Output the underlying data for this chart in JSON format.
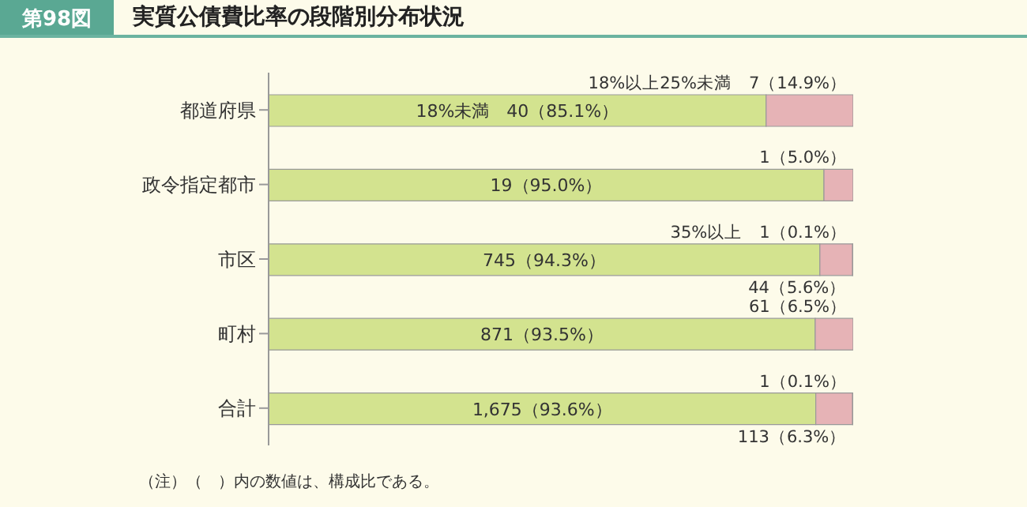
{
  "chart_data": {
    "type": "bar",
    "orientation": "horizontal",
    "stacked": true,
    "subtitle": "第98図",
    "title": "実質公債費比率の段階別分布状況",
    "categories": [
      "都道府県",
      "政令指定都市",
      "市区",
      "町村",
      "合計"
    ],
    "series": [
      {
        "name": "18%未満",
        "color": "#d3e38f",
        "values": [
          85.1,
          95.0,
          94.3,
          93.5,
          93.6
        ],
        "value_labels": [
          "40（85.1%）",
          "19（95.0%）",
          "745（94.3%）",
          "871（93.5%）",
          "1,675（93.6%）"
        ]
      },
      {
        "name": "18%以上25%未満",
        "color": "#e6b3b6",
        "values": [
          14.9,
          5.0,
          5.6,
          6.5,
          6.3
        ],
        "value_labels": [
          "7（14.9%）",
          "1（5.0%）",
          "44（5.6%）",
          "61（6.5%）",
          "113（6.3%）"
        ]
      },
      {
        "name": "35%以上",
        "color": "#e6b3b6",
        "values": [
          null,
          null,
          0.1,
          null,
          0.1
        ],
        "value_labels": [
          null,
          null,
          "1（0.1%）",
          null,
          "1（0.1%）"
        ]
      }
    ],
    "xlim": [
      0,
      100
    ],
    "tick_labels": "y",
    "legend": false,
    "grid": false,
    "annotations": [
      "（注）（　）内の数値は、構成比である。"
    ]
  }
}
